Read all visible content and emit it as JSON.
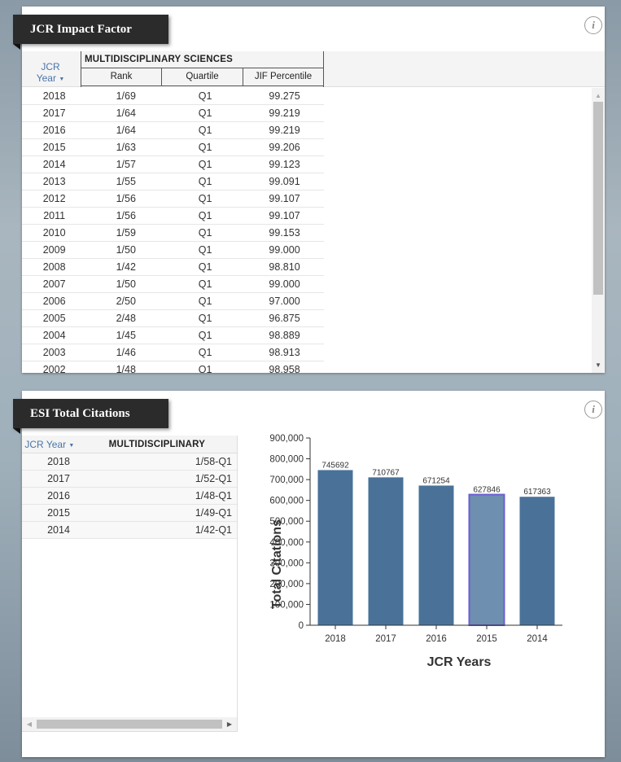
{
  "jcr_panel": {
    "title": "JCR Impact Factor",
    "info_glyph": "i",
    "year_header": "JCR",
    "year_header_2": "Year",
    "sort_icon": "caret-down-icon",
    "category": "MULTIDISCIPLINARY SCIENCES",
    "columns": [
      "Rank",
      "Quartile",
      "JIF Percentile"
    ],
    "rows": [
      [
        "2018",
        "1/69",
        "Q1",
        "99.275"
      ],
      [
        "2017",
        "1/64",
        "Q1",
        "99.219"
      ],
      [
        "2016",
        "1/64",
        "Q1",
        "99.219"
      ],
      [
        "2015",
        "1/63",
        "Q1",
        "99.206"
      ],
      [
        "2014",
        "1/57",
        "Q1",
        "99.123"
      ],
      [
        "2013",
        "1/55",
        "Q1",
        "99.091"
      ],
      [
        "2012",
        "1/56",
        "Q1",
        "99.107"
      ],
      [
        "2011",
        "1/56",
        "Q1",
        "99.107"
      ],
      [
        "2010",
        "1/59",
        "Q1",
        "99.153"
      ],
      [
        "2009",
        "1/50",
        "Q1",
        "99.000"
      ],
      [
        "2008",
        "1/42",
        "Q1",
        "98.810"
      ],
      [
        "2007",
        "1/50",
        "Q1",
        "99.000"
      ],
      [
        "2006",
        "2/50",
        "Q1",
        "97.000"
      ],
      [
        "2005",
        "2/48",
        "Q1",
        "96.875"
      ],
      [
        "2004",
        "1/45",
        "Q1",
        "98.889"
      ],
      [
        "2003",
        "1/46",
        "Q1",
        "98.913"
      ],
      [
        "2002",
        "1/48",
        "Q1",
        "98.958"
      ]
    ]
  },
  "esi_panel": {
    "title": "ESI Total Citations",
    "info_glyph": "i",
    "year_header": "JCR Year",
    "category": "MULTIDISCIPLINARY",
    "rows": [
      [
        "2018",
        "1/58-Q1"
      ],
      [
        "2017",
        "1/52-Q1"
      ],
      [
        "2016",
        "1/48-Q1"
      ],
      [
        "2015",
        "1/49-Q1"
      ],
      [
        "2014",
        "1/42-Q1"
      ]
    ]
  },
  "colors": {
    "bar": "#4a7299",
    "bar_highlight": "#6e8fb0",
    "bar_highlight_outline": "#6a5fd0",
    "link_blue": "#4a74a8",
    "title_tab": "#2b2b2b"
  },
  "chart_data": {
    "type": "bar",
    "categories": [
      "2018",
      "2017",
      "2016",
      "2015",
      "2014"
    ],
    "values": [
      745692,
      710767,
      671254,
      627846,
      617363
    ],
    "data_labels": [
      "745692",
      "710767",
      "671254",
      "627846",
      "617363"
    ],
    "highlighted_category": "2015",
    "xlabel": "JCR Years",
    "ylabel": "Total Citations",
    "ylim": [
      0,
      900000
    ],
    "yticks": [
      0,
      100000,
      200000,
      300000,
      400000,
      500000,
      600000,
      700000,
      800000,
      900000
    ],
    "ytick_labels": [
      "0",
      "100,000",
      "200,000",
      "300,000",
      "400,000",
      "500,000",
      "600,000",
      "700,000",
      "800,000",
      "900,000"
    ],
    "grid": false,
    "legend": "none"
  }
}
